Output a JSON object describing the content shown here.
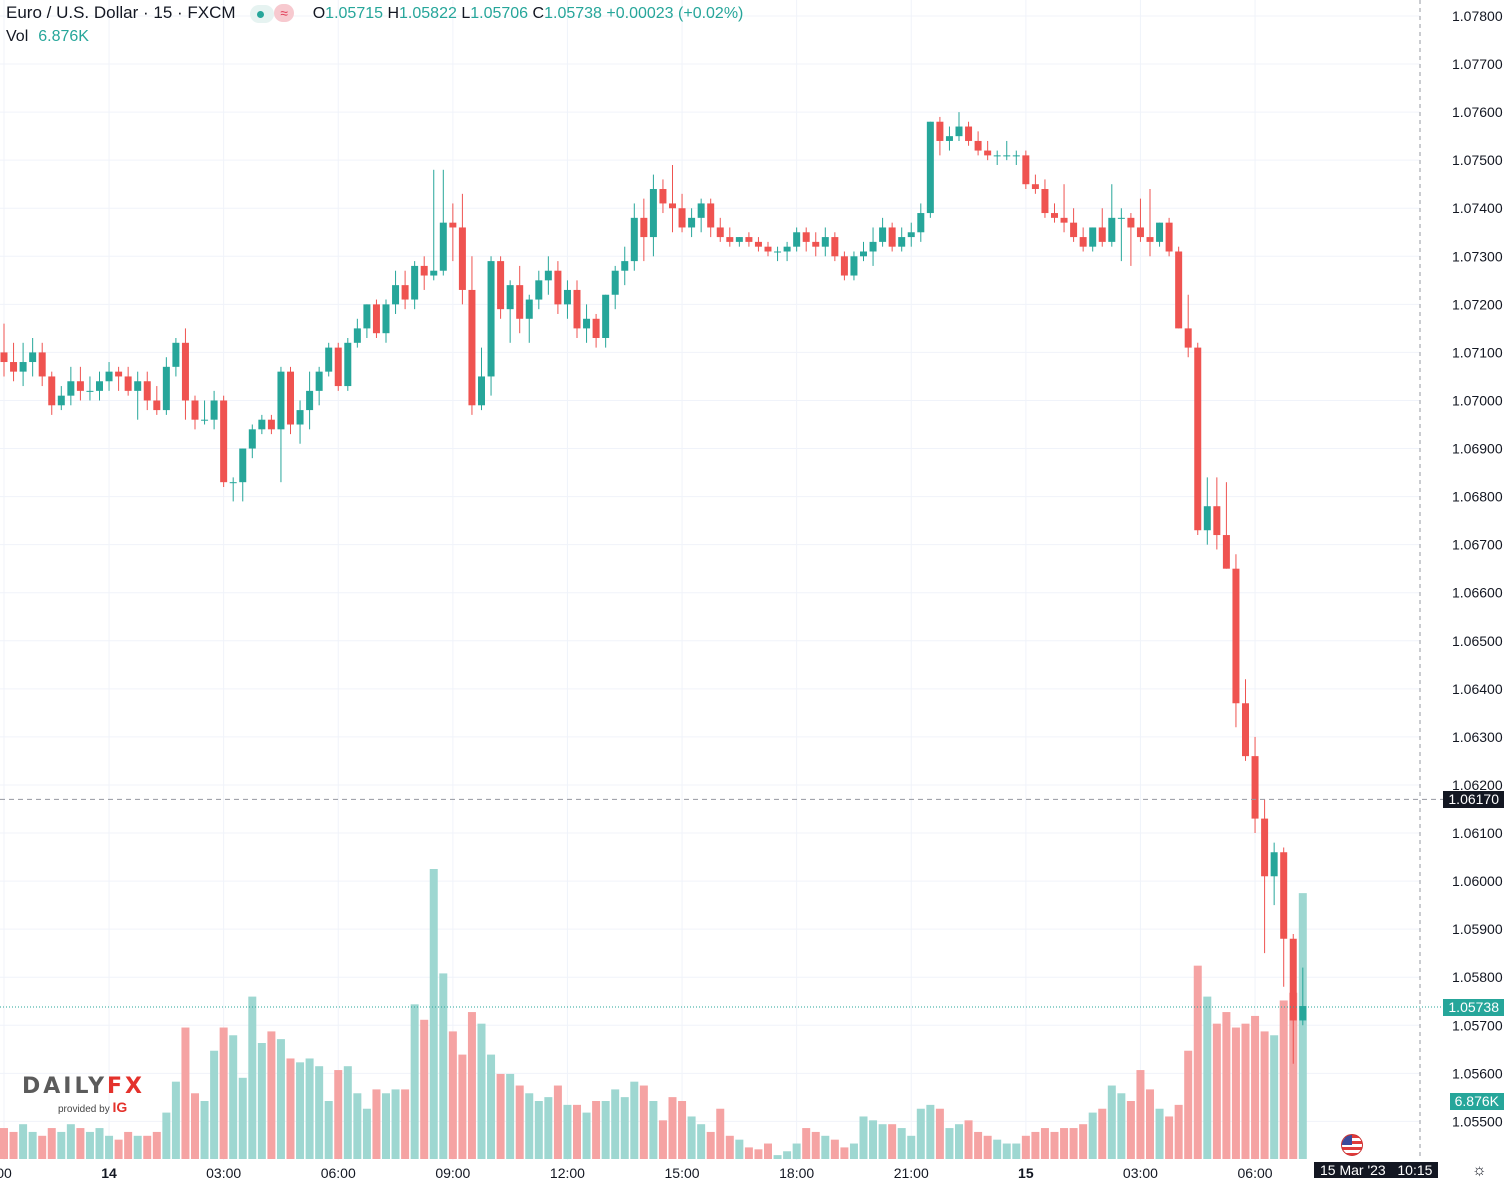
{
  "legend": {
    "title": "Euro / U.S. Dollar · 15 · FXCM",
    "wave_icon": "≈",
    "o_label": "O",
    "o": "1.05715",
    "h_label": "H",
    "h": "1.05822",
    "l_label": "L",
    "l": "1.05706",
    "c_label": "C",
    "c": "1.05738",
    "change": "+0.00023 (+0.02%)",
    "vol_label": "Vol",
    "vol_value": "6.876K"
  },
  "crosshair_price": "1.06170",
  "last_price": "1.05738",
  "last_volume": "6.876K",
  "crosshair_time": "15 Mar '23",
  "crosshair_time2": "10:15",
  "logo": {
    "brand_a": "DAILY",
    "brand_b": "FX",
    "by": "provided by",
    "ig": "IG"
  },
  "colors": {
    "up": "#26a69a",
    "down": "#ef5350",
    "vol_up": "#9ed7d1",
    "vol_down": "#f5a3a3",
    "grid": "#f0f3fa",
    "axis_text": "#131722"
  },
  "chart_data": {
    "type": "candlestick",
    "title": "Euro / U.S. Dollar · 15 · FXCM",
    "ylim": [
      1.0545,
      1.0783
    ],
    "y_ticks": [
      "1.07800",
      "1.07700",
      "1.07600",
      "1.07500",
      "1.07400",
      "1.07300",
      "1.07200",
      "1.07100",
      "1.07000",
      "1.06900",
      "1.06800",
      "1.06700",
      "1.06600",
      "1.06500",
      "1.06400",
      "1.06300",
      "1.06200",
      "1.06100",
      "1.06000",
      "1.05900",
      "1.05800",
      "1.05700",
      "1.05600",
      "1.05500"
    ],
    "x_ticks": [
      {
        "label": "00",
        "bar": 0,
        "bold": false
      },
      {
        "label": "14",
        "bar": 11,
        "bold": true
      },
      {
        "label": "03:00",
        "bar": 23,
        "bold": false
      },
      {
        "label": "06:00",
        "bar": 35,
        "bold": false
      },
      {
        "label": "09:00",
        "bar": 47,
        "bold": false
      },
      {
        "label": "12:00",
        "bar": 59,
        "bold": false
      },
      {
        "label": "15:00",
        "bar": 71,
        "bold": false
      },
      {
        "label": "18:00",
        "bar": 83,
        "bold": false
      },
      {
        "label": "21:00",
        "bar": 95,
        "bold": false
      },
      {
        "label": "15",
        "bar": 107,
        "bold": true
      },
      {
        "label": "03:00",
        "bar": 119,
        "bold": false
      },
      {
        "label": "06:00",
        "bar": 131,
        "bold": false
      }
    ],
    "ohlcv": [
      [
        1.071,
        1.0716,
        1.0705,
        1.0708,
        800
      ],
      [
        1.0708,
        1.0712,
        1.0704,
        1.0706,
        700
      ],
      [
        1.0706,
        1.0712,
        1.0703,
        1.0708,
        900
      ],
      [
        1.0708,
        1.0713,
        1.0705,
        1.071,
        700
      ],
      [
        1.071,
        1.0712,
        1.0703,
        1.0705,
        600
      ],
      [
        1.0705,
        1.0706,
        1.0697,
        1.0699,
        800
      ],
      [
        1.0699,
        1.0703,
        1.0698,
        1.0701,
        700
      ],
      [
        1.0701,
        1.0707,
        1.0699,
        1.0704,
        900
      ],
      [
        1.0704,
        1.0707,
        1.07,
        1.0702,
        800
      ],
      [
        1.0702,
        1.0705,
        1.07,
        1.0702,
        700
      ],
      [
        1.0702,
        1.0706,
        1.07,
        1.0704,
        800
      ],
      [
        1.0704,
        1.0708,
        1.0702,
        1.0706,
        600
      ],
      [
        1.0706,
        1.0707,
        1.0702,
        1.0705,
        500
      ],
      [
        1.0705,
        1.0707,
        1.0701,
        1.0702,
        700
      ],
      [
        1.0702,
        1.0706,
        1.0696,
        1.0704,
        600
      ],
      [
        1.0704,
        1.0706,
        1.0698,
        1.07,
        600
      ],
      [
        1.07,
        1.0703,
        1.0697,
        1.0698,
        700
      ],
      [
        1.0698,
        1.0709,
        1.0697,
        1.0707,
        1200
      ],
      [
        1.0707,
        1.0713,
        1.0705,
        1.0712,
        2000
      ],
      [
        1.0712,
        1.0715,
        1.0696,
        1.07,
        3400
      ],
      [
        1.07,
        1.0701,
        1.0694,
        1.0696,
        1700
      ],
      [
        1.0696,
        1.07,
        1.0695,
        1.0696,
        1500
      ],
      [
        1.0696,
        1.0702,
        1.0694,
        1.07,
        2800
      ],
      [
        1.07,
        1.0701,
        1.0682,
        1.0683,
        3400
      ],
      [
        1.0683,
        1.0684,
        1.0679,
        1.0683,
        3200
      ],
      [
        1.0683,
        1.069,
        1.0679,
        1.069,
        2100
      ],
      [
        1.069,
        1.0695,
        1.0688,
        1.0694,
        4200
      ],
      [
        1.0694,
        1.0697,
        1.0693,
        1.0696,
        3000
      ],
      [
        1.0696,
        1.0697,
        1.0693,
        1.0694,
        3300
      ],
      [
        1.0694,
        1.0707,
        1.0683,
        1.0706,
        3100
      ],
      [
        1.0706,
        1.0707,
        1.0693,
        1.0695,
        2600
      ],
      [
        1.0695,
        1.07,
        1.0691,
        1.0698,
        2500
      ],
      [
        1.0698,
        1.0706,
        1.0694,
        1.0702,
        2600
      ],
      [
        1.0702,
        1.0707,
        1.0699,
        1.0706,
        2400
      ],
      [
        1.0706,
        1.0712,
        1.0705,
        1.0711,
        1500
      ],
      [
        1.0711,
        1.0712,
        1.0702,
        1.0703,
        2300
      ],
      [
        1.0703,
        1.0713,
        1.0702,
        1.0712,
        2400
      ],
      [
        1.0712,
        1.0717,
        1.0711,
        1.0715,
        1700
      ],
      [
        1.0715,
        1.072,
        1.0713,
        1.072,
        1300
      ],
      [
        1.072,
        1.0721,
        1.0713,
        1.0714,
        1800
      ],
      [
        1.0714,
        1.0721,
        1.0712,
        1.072,
        1700
      ],
      [
        1.072,
        1.0727,
        1.0718,
        1.0724,
        1800
      ],
      [
        1.0724,
        1.0727,
        1.0719,
        1.0721,
        1800
      ],
      [
        1.0721,
        1.0729,
        1.0719,
        1.0728,
        4000
      ],
      [
        1.0728,
        1.073,
        1.0723,
        1.0726,
        3600
      ],
      [
        1.0726,
        1.0748,
        1.0725,
        1.0727,
        7500
      ],
      [
        1.0727,
        1.0748,
        1.0726,
        1.0737,
        4800
      ],
      [
        1.0737,
        1.0741,
        1.0729,
        1.0736,
        3300
      ],
      [
        1.0736,
        1.0743,
        1.072,
        1.0723,
        2700
      ],
      [
        1.0723,
        1.073,
        1.0697,
        1.0699,
        3800
      ],
      [
        1.0699,
        1.0711,
        1.0698,
        1.0705,
        3500
      ],
      [
        1.0705,
        1.073,
        1.0701,
        1.0729,
        2700
      ],
      [
        1.0729,
        1.073,
        1.0717,
        1.0719,
        2200
      ],
      [
        1.0719,
        1.0725,
        1.0712,
        1.0724,
        2200
      ],
      [
        1.0724,
        1.0728,
        1.0714,
        1.0717,
        1900
      ],
      [
        1.0717,
        1.0722,
        1.0712,
        1.0721,
        1700
      ],
      [
        1.0721,
        1.0727,
        1.0719,
        1.0725,
        1500
      ],
      [
        1.0725,
        1.073,
        1.0722,
        1.0727,
        1600
      ],
      [
        1.0727,
        1.0729,
        1.0718,
        1.072,
        1900
      ],
      [
        1.072,
        1.0725,
        1.0717,
        1.0723,
        1400
      ],
      [
        1.0723,
        1.0725,
        1.0713,
        1.0715,
        1400
      ],
      [
        1.0715,
        1.072,
        1.0712,
        1.0717,
        1200
      ],
      [
        1.0717,
        1.0718,
        1.0711,
        1.0713,
        1500
      ],
      [
        1.0713,
        1.0722,
        1.0711,
        1.0722,
        1500
      ],
      [
        1.0722,
        1.0728,
        1.0719,
        1.0727,
        1800
      ],
      [
        1.0727,
        1.0732,
        1.0724,
        1.0729,
        1600
      ],
      [
        1.0729,
        1.0741,
        1.0727,
        1.0738,
        2000
      ],
      [
        1.0738,
        1.0742,
        1.0729,
        1.0734,
        1900
      ],
      [
        1.0734,
        1.0747,
        1.073,
        1.0744,
        1500
      ],
      [
        1.0744,
        1.0746,
        1.0739,
        1.0741,
        1000
      ],
      [
        1.0741,
        1.0749,
        1.0735,
        1.074,
        1600
      ],
      [
        1.074,
        1.0743,
        1.0735,
        1.0736,
        1500
      ],
      [
        1.0736,
        1.074,
        1.0734,
        1.0738,
        1100
      ],
      [
        1.0738,
        1.0742,
        1.0735,
        1.0741,
        900
      ],
      [
        1.0741,
        1.0742,
        1.0734,
        1.0736,
        700
      ],
      [
        1.0736,
        1.0738,
        1.0733,
        1.0734,
        1300
      ],
      [
        1.0734,
        1.0736,
        1.0732,
        1.0733,
        600
      ],
      [
        1.0733,
        1.0734,
        1.0732,
        1.0734,
        500
      ],
      [
        1.0734,
        1.0735,
        1.0732,
        1.0733,
        300
      ],
      [
        1.0733,
        1.0734,
        1.0731,
        1.0732,
        250
      ],
      [
        1.0732,
        1.0733,
        1.073,
        1.0731,
        400
      ],
      [
        1.0731,
        1.0732,
        1.0729,
        1.0731,
        100
      ],
      [
        1.0731,
        1.0733,
        1.0729,
        1.0732,
        200
      ],
      [
        1.0732,
        1.0736,
        1.0731,
        1.0735,
        400
      ],
      [
        1.0735,
        1.0736,
        1.0731,
        1.0733,
        800
      ],
      [
        1.0733,
        1.0735,
        1.073,
        1.0732,
        700
      ],
      [
        1.0732,
        1.0736,
        1.073,
        1.0734,
        600
      ],
      [
        1.0734,
        1.0735,
        1.0729,
        1.073,
        500
      ],
      [
        1.073,
        1.0731,
        1.0725,
        1.0726,
        300
      ],
      [
        1.0726,
        1.0731,
        1.0725,
        1.073,
        400
      ],
      [
        1.073,
        1.0733,
        1.0729,
        1.0731,
        1100
      ],
      [
        1.0731,
        1.0736,
        1.0728,
        1.0733,
        1000
      ],
      [
        1.0733,
        1.0738,
        1.0732,
        1.0736,
        900
      ],
      [
        1.0736,
        1.0737,
        1.0731,
        1.0732,
        900
      ],
      [
        1.0732,
        1.0736,
        1.0731,
        1.0734,
        800
      ],
      [
        1.0734,
        1.0737,
        1.0732,
        1.0735,
        600
      ],
      [
        1.0735,
        1.0741,
        1.0733,
        1.0739,
        1300
      ],
      [
        1.0739,
        1.0758,
        1.0738,
        1.0758,
        1400
      ],
      [
        1.0758,
        1.0759,
        1.0751,
        1.0754,
        1300
      ],
      [
        1.0754,
        1.0757,
        1.0752,
        1.0755,
        800
      ],
      [
        1.0755,
        1.076,
        1.0754,
        1.0757,
        900
      ],
      [
        1.0757,
        1.0758,
        1.0753,
        1.0754,
        1000
      ],
      [
        1.0754,
        1.0756,
        1.0751,
        1.0752,
        700
      ],
      [
        1.0752,
        1.0754,
        1.075,
        1.0751,
        600
      ],
      [
        1.0751,
        1.0752,
        1.0749,
        1.0751,
        500
      ],
      [
        1.0751,
        1.0754,
        1.075,
        1.0751,
        400
      ],
      [
        1.0751,
        1.0752,
        1.0749,
        1.0751,
        400
      ],
      [
        1.0751,
        1.0752,
        1.0744,
        1.0745,
        600
      ],
      [
        1.0745,
        1.0747,
        1.0743,
        1.0744,
        700
      ],
      [
        1.0744,
        1.0746,
        1.0738,
        1.0739,
        800
      ],
      [
        1.0739,
        1.0741,
        1.0737,
        1.0738,
        700
      ],
      [
        1.0738,
        1.0745,
        1.0735,
        1.0737,
        800
      ],
      [
        1.0737,
        1.074,
        1.0733,
        1.0734,
        800
      ],
      [
        1.0734,
        1.0736,
        1.0731,
        1.0732,
        900
      ],
      [
        1.0732,
        1.0736,
        1.0731,
        1.0736,
        1200
      ],
      [
        1.0736,
        1.074,
        1.0732,
        1.0733,
        1300
      ],
      [
        1.0733,
        1.0745,
        1.0732,
        1.0738,
        1900
      ],
      [
        1.0738,
        1.074,
        1.0729,
        1.0738,
        1700
      ],
      [
        1.0738,
        1.0739,
        1.0728,
        1.0736,
        1500
      ],
      [
        1.0736,
        1.0742,
        1.0733,
        1.0734,
        2300
      ],
      [
        1.0734,
        1.0744,
        1.073,
        1.0733,
        1800
      ],
      [
        1.0733,
        1.0737,
        1.0732,
        1.0737,
        1300
      ],
      [
        1.0737,
        1.0738,
        1.073,
        1.0731,
        1100
      ],
      [
        1.0731,
        1.0732,
        1.0715,
        1.0715,
        1400
      ],
      [
        1.0715,
        1.0722,
        1.0709,
        1.0711,
        2800
      ],
      [
        1.0711,
        1.0712,
        1.0672,
        1.0673,
        5000
      ],
      [
        1.0673,
        1.0684,
        1.067,
        1.0678,
        4200
      ],
      [
        1.0678,
        1.0684,
        1.0669,
        1.0672,
        3500
      ],
      [
        1.0672,
        1.0683,
        1.0665,
        1.0665,
        3800
      ],
      [
        1.0665,
        1.0668,
        1.0632,
        1.0637,
        3400
      ],
      [
        1.0637,
        1.0642,
        1.0625,
        1.0626,
        3500
      ],
      [
        1.0626,
        1.063,
        1.061,
        1.0613,
        3700
      ],
      [
        1.0613,
        1.0617,
        1.0585,
        1.0601,
        3300
      ],
      [
        1.0601,
        1.0608,
        1.0595,
        1.0606,
        3200
      ],
      [
        1.0606,
        1.0607,
        1.0578,
        1.0588,
        4100
      ],
      [
        1.0588,
        1.0589,
        1.0562,
        1.0571,
        4300
      ],
      [
        1.0571,
        1.0582,
        1.057,
        1.0574,
        6876
      ]
    ]
  }
}
